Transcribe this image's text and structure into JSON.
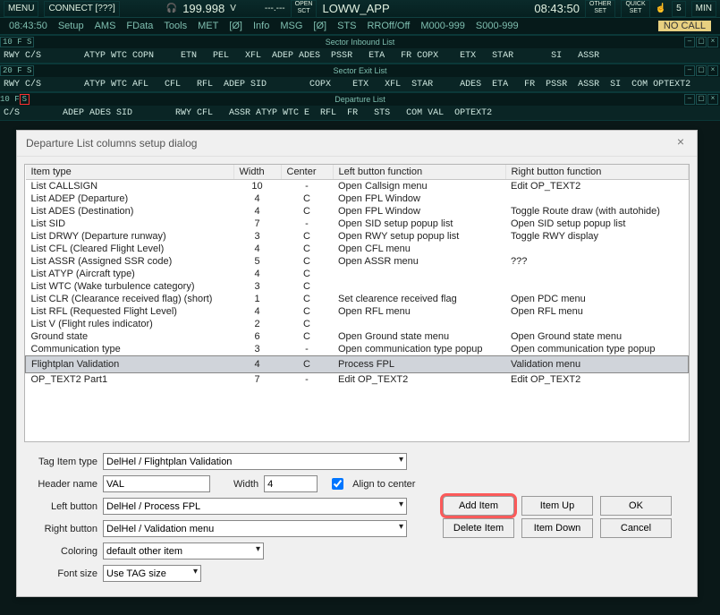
{
  "topbar": {
    "menu_label": "MENU",
    "connect": "CONNECT [???]",
    "headset_value": "199.998",
    "v_label": "V",
    "dash": "---.---",
    "open_label": "OPEN",
    "sct_label": "SCT",
    "sector": "LOWW_APP",
    "clock": "08:43:50",
    "other_set": "OTHER",
    "set1": "SET",
    "quick_set": "QUICK",
    "set2": "SET",
    "five": "5",
    "min": "MIN"
  },
  "menubar": {
    "clock": "08:43:50",
    "items": [
      "Setup",
      "AMS",
      "FData",
      "Tools",
      "MET",
      "[Ø]",
      "Info",
      "MSG",
      "[Ø]",
      "STS",
      "RROff/Off",
      "M000-999",
      "S000-999"
    ],
    "no_call": "NO CALL"
  },
  "sector_inbound": {
    "prefix": "10 F  S",
    "title": "Sector Inbound List",
    "cols": "RWY C/S        ATYP WTC COPN     ETN   PEL   XFL  ADEP ADES  PSSR   ETA   FR COPX    ETX   STAR       SI   ASSR"
  },
  "sector_exit": {
    "prefix": "20 F  S",
    "title": "Sector Exit List",
    "cols": "RWY C/S        ATYP WTC AFL   CFL   RFL  ADEP SID        COPX    ETX   XFL  STAR     ADES  ETA   FR  PSSR  ASSR  SI  COM OPTEXT2"
  },
  "departure_list": {
    "prefix": "10 F ",
    "prefix_red": "S",
    "title": "Departure List",
    "cols_row1_left": "C/S        ADEP ADES SID        RWY CFL   ASSR ATYP WTC E  RFL  FR   STS   COM VAL  OPTEXT2"
  },
  "dialog": {
    "title": "Departure List columns setup dialog",
    "headers": {
      "type": "Item type",
      "width": "Width",
      "center": "Center",
      "lbtn": "Left button function",
      "rbtn": "Right button function"
    },
    "rows": [
      {
        "type": "List CALLSIGN",
        "w": "10",
        "c": "-",
        "l": "Open Callsign menu",
        "r": "Edit OP_TEXT2"
      },
      {
        "type": "List ADEP (Departure)",
        "w": "4",
        "c": "C",
        "l": "Open FPL Window",
        "r": ""
      },
      {
        "type": "List ADES (Destination)",
        "w": "4",
        "c": "C",
        "l": "Open FPL Window",
        "r": "Toggle Route draw (with autohide)"
      },
      {
        "type": "List SID",
        "w": "7",
        "c": "-",
        "l": "Open SID setup popup list",
        "r": "Open SID setup popup list"
      },
      {
        "type": "List DRWY (Departure runway)",
        "w": "3",
        "c": "C",
        "l": "Open RWY setup popup list",
        "r": "Toggle RWY display"
      },
      {
        "type": "List CFL (Cleared Flight Level)",
        "w": "4",
        "c": "C",
        "l": "Open CFL menu",
        "r": ""
      },
      {
        "type": "List ASSR (Assigned SSR code)",
        "w": "5",
        "c": "C",
        "l": "Open ASSR menu",
        "r": "???"
      },
      {
        "type": "List ATYP (Aircraft type)",
        "w": "4",
        "c": "C",
        "l": "",
        "r": ""
      },
      {
        "type": "List WTC (Wake turbulence category)",
        "w": "3",
        "c": "C",
        "l": "",
        "r": ""
      },
      {
        "type": "List CLR (Clearance received flag) (short)",
        "w": "1",
        "c": "C",
        "l": "Set clearence received flag",
        "r": "Open PDC menu"
      },
      {
        "type": "List RFL (Requested Flight Level)",
        "w": "4",
        "c": "C",
        "l": "Open RFL menu",
        "r": "Open RFL menu"
      },
      {
        "type": "List V (Flight rules indicator)",
        "w": "2",
        "c": "C",
        "l": "",
        "r": ""
      },
      {
        "type": "Ground state",
        "w": "6",
        "c": "C",
        "l": "Open Ground state menu",
        "r": "Open Ground state menu"
      },
      {
        "type": "Communication type",
        "w": "3",
        "c": "-",
        "l": "Open communication type popup",
        "r": "Open communication type popup"
      },
      {
        "type": "Flightplan Validation",
        "w": "4",
        "c": "C",
        "l": "Process FPL",
        "r": "Validation menu",
        "sel": true
      },
      {
        "type": "OP_TEXT2 Part1",
        "w": "7",
        "c": "-",
        "l": "Edit OP_TEXT2",
        "r": "Edit OP_TEXT2"
      }
    ],
    "form": {
      "tag_item_label": "Tag Item type",
      "tag_item_value": "DelHel / Flightplan Validation",
      "header_label": "Header name",
      "header_value": "VAL",
      "width_label": "Width",
      "width_value": "4",
      "align_label": "Align to center",
      "leftbtn_label": "Left button",
      "leftbtn_value": "DelHel / Process FPL",
      "rightbtn_label": "Right button",
      "rightbtn_value": "DelHel / Validation menu",
      "coloring_label": "Coloring",
      "coloring_value": "default other item",
      "fontsize_label": "Font size",
      "fontsize_value": "Use TAG size"
    },
    "buttons": {
      "add": "Add Item",
      "delete": "Delete Item",
      "up": "Item Up",
      "down": "Item Down",
      "ok": "OK",
      "cancel": "Cancel"
    }
  }
}
